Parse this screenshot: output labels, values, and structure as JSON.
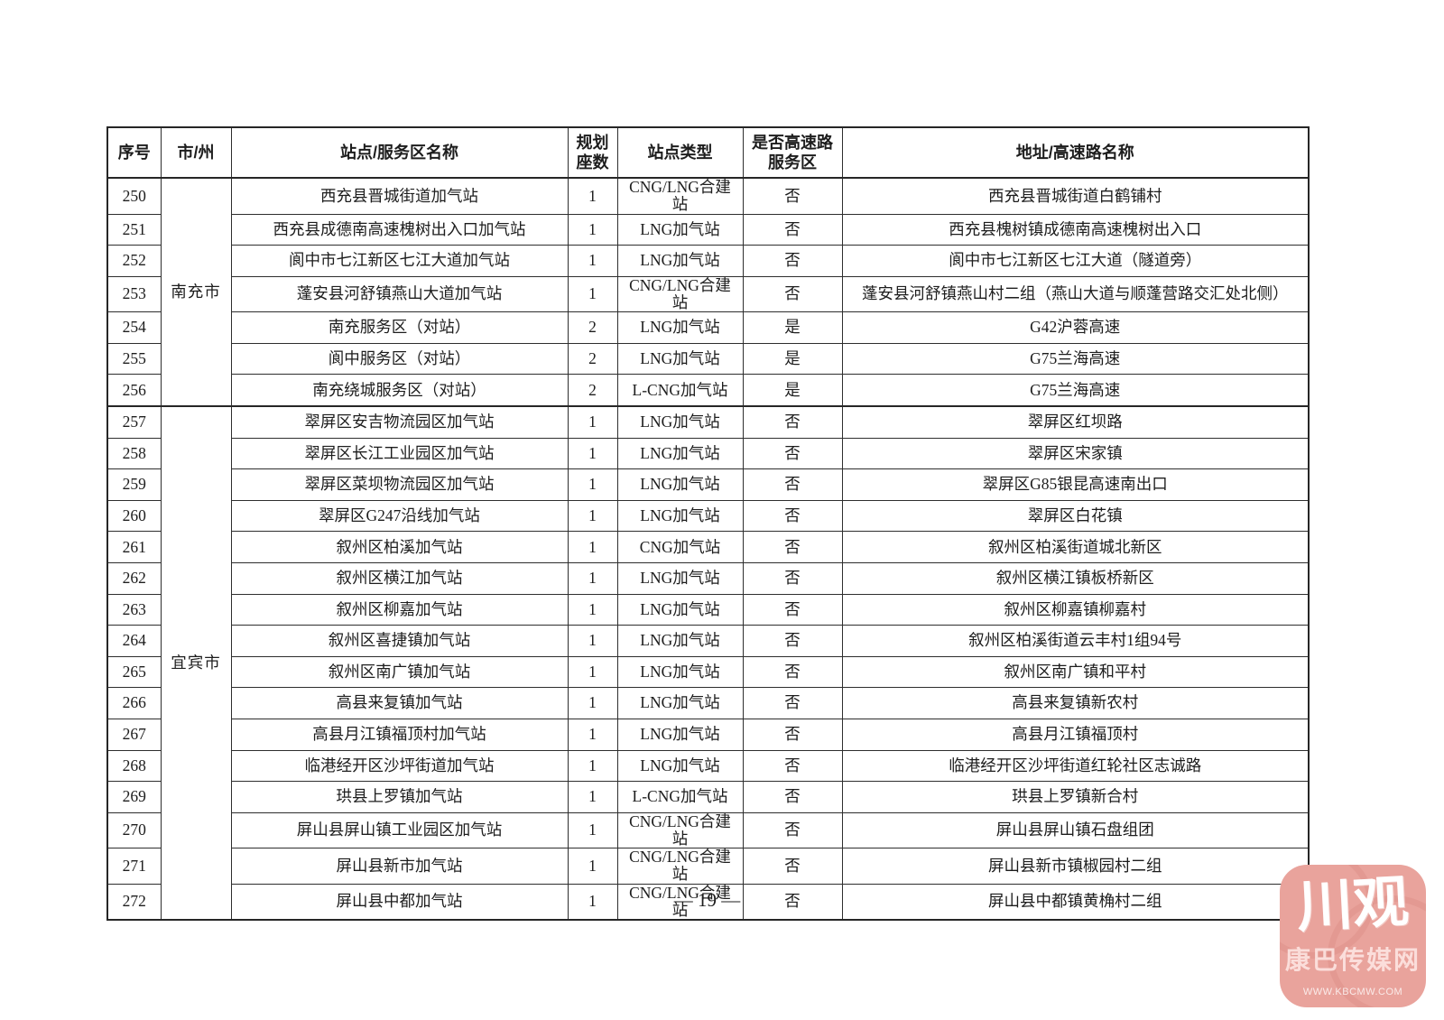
{
  "page": {
    "number_label": "— 19 —"
  },
  "table": {
    "columns": [
      "序号",
      "市/州",
      "站点/服务区名称",
      "规划座数",
      "站点类型",
      "是否高速路服务区",
      "地址/高速路名称"
    ],
    "groups": [
      {
        "city": "南充市",
        "rows": [
          {
            "no": "250",
            "name": "西充县晋城街道加气站",
            "seats": "1",
            "type": "CNG/LNG合建站",
            "highway": "否",
            "address": "西充县晋城街道白鹤铺村"
          },
          {
            "no": "251",
            "name": "西充县成德南高速槐树出入口加气站",
            "seats": "1",
            "type": "LNG加气站",
            "highway": "否",
            "address": "西充县槐树镇成德南高速槐树出入口"
          },
          {
            "no": "252",
            "name": "阆中市七江新区七江大道加气站",
            "seats": "1",
            "type": "LNG加气站",
            "highway": "否",
            "address": "阆中市七江新区七江大道（隧道旁）"
          },
          {
            "no": "253",
            "name": "蓬安县河舒镇燕山大道加气站",
            "seats": "1",
            "type": "CNG/LNG合建站",
            "highway": "否",
            "address": "蓬安县河舒镇燕山村二组（燕山大道与顺蓬营路交汇处北侧）"
          },
          {
            "no": "254",
            "name": "南充服务区（对站）",
            "seats": "2",
            "type": "LNG加气站",
            "highway": "是",
            "address": "G42沪蓉高速"
          },
          {
            "no": "255",
            "name": "阆中服务区（对站）",
            "seats": "2",
            "type": "LNG加气站",
            "highway": "是",
            "address": "G75兰海高速"
          },
          {
            "no": "256",
            "name": "南充绕城服务区（对站）",
            "seats": "2",
            "type": "L-CNG加气站",
            "highway": "是",
            "address": "G75兰海高速"
          }
        ]
      },
      {
        "city": "宜宾市",
        "rows": [
          {
            "no": "257",
            "name": "翠屏区安吉物流园区加气站",
            "seats": "1",
            "type": "LNG加气站",
            "highway": "否",
            "address": "翠屏区红坝路"
          },
          {
            "no": "258",
            "name": "翠屏区长江工业园区加气站",
            "seats": "1",
            "type": "LNG加气站",
            "highway": "否",
            "address": "翠屏区宋家镇"
          },
          {
            "no": "259",
            "name": "翠屏区菜坝物流园区加气站",
            "seats": "1",
            "type": "LNG加气站",
            "highway": "否",
            "address": "翠屏区G85银昆高速南出口"
          },
          {
            "no": "260",
            "name": "翠屏区G247沿线加气站",
            "seats": "1",
            "type": "LNG加气站",
            "highway": "否",
            "address": "翠屏区白花镇"
          },
          {
            "no": "261",
            "name": "叙州区柏溪加气站",
            "seats": "1",
            "type": "CNG加气站",
            "highway": "否",
            "address": "叙州区柏溪街道城北新区"
          },
          {
            "no": "262",
            "name": "叙州区横江加气站",
            "seats": "1",
            "type": "LNG加气站",
            "highway": "否",
            "address": "叙州区横江镇板桥新区"
          },
          {
            "no": "263",
            "name": "叙州区柳嘉加气站",
            "seats": "1",
            "type": "LNG加气站",
            "highway": "否",
            "address": "叙州区柳嘉镇柳嘉村"
          },
          {
            "no": "264",
            "name": "叙州区喜捷镇加气站",
            "seats": "1",
            "type": "LNG加气站",
            "highway": "否",
            "address": "叙州区柏溪街道云丰村1组94号"
          },
          {
            "no": "265",
            "name": "叙州区南广镇加气站",
            "seats": "1",
            "type": "LNG加气站",
            "highway": "否",
            "address": "叙州区南广镇和平村"
          },
          {
            "no": "266",
            "name": "高县来复镇加气站",
            "seats": "1",
            "type": "LNG加气站",
            "highway": "否",
            "address": "高县来复镇新农村"
          },
          {
            "no": "267",
            "name": "高县月江镇福顶村加气站",
            "seats": "1",
            "type": "LNG加气站",
            "highway": "否",
            "address": "高县月江镇福顶村"
          },
          {
            "no": "268",
            "name": "临港经开区沙坪街道加气站",
            "seats": "1",
            "type": "LNG加气站",
            "highway": "否",
            "address": "临港经开区沙坪街道红轮社区志诚路"
          },
          {
            "no": "269",
            "name": "珙县上罗镇加气站",
            "seats": "1",
            "type": "L-CNG加气站",
            "highway": "否",
            "address": "珙县上罗镇新合村"
          },
          {
            "no": "270",
            "name": "屏山县屏山镇工业园区加气站",
            "seats": "1",
            "type": "CNG/LNG合建站",
            "highway": "否",
            "address": "屏山县屏山镇石盘组团"
          },
          {
            "no": "271",
            "name": "屏山县新市加气站",
            "seats": "1",
            "type": "CNG/LNG合建站",
            "highway": "否",
            "address": "屏山县新市镇椒园村二组"
          },
          {
            "no": "272",
            "name": "屏山县中都加气站",
            "seats": "1",
            "type": "CNG/LNG合建站",
            "highway": "否",
            "address": "屏山县中都镇黄桷村二组"
          }
        ]
      }
    ]
  },
  "watermark": {
    "logo_text": "川观",
    "site_name": "康巴传媒网",
    "site_url": "WWW.KBCMW.COM",
    "accent_color": "#e9a39c"
  }
}
